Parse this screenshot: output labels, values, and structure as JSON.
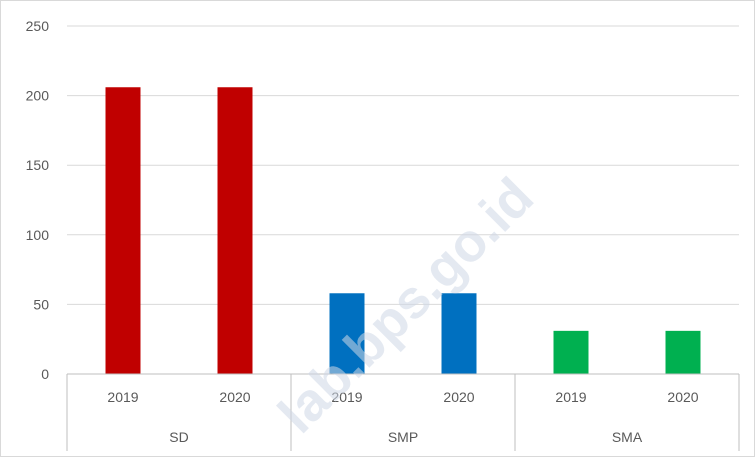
{
  "chart_data": {
    "type": "bar",
    "groups": [
      {
        "name": "SD",
        "color": "#c00000",
        "bars": [
          {
            "label": "2019",
            "value": 206
          },
          {
            "label": "2020",
            "value": 206
          }
        ]
      },
      {
        "name": "SMP",
        "color": "#0070c0",
        "bars": [
          {
            "label": "2019",
            "value": 58
          },
          {
            "label": "2020",
            "value": 58
          }
        ]
      },
      {
        "name": "SMA",
        "color": "#00b050",
        "bars": [
          {
            "label": "2019",
            "value": 31
          },
          {
            "label": "2020",
            "value": 31
          }
        ]
      }
    ],
    "ylim": [
      0,
      250
    ],
    "yticks": [
      0,
      50,
      100,
      150,
      200,
      250
    ],
    "grid": true,
    "legend": "none"
  },
  "watermark": {
    "text": "lab.bps.go.id"
  }
}
